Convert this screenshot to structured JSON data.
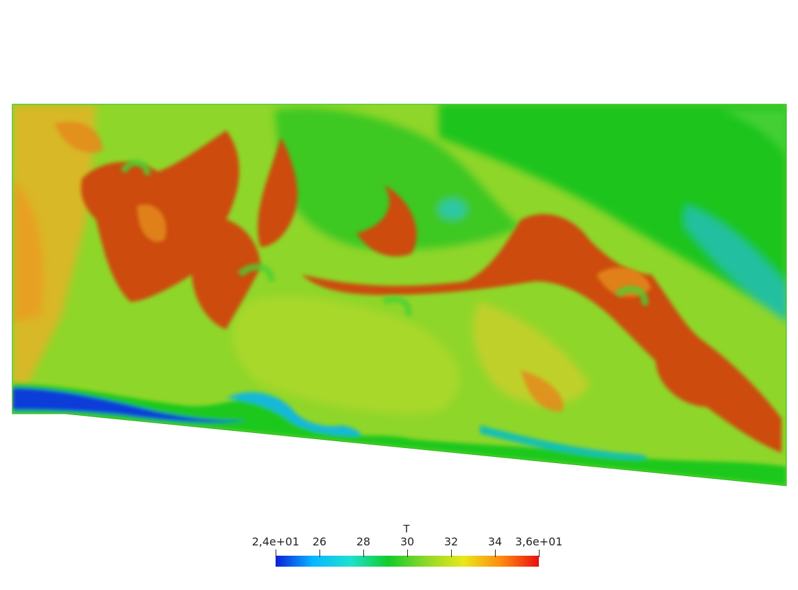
{
  "colormap": {
    "stops": [
      "#0a1fd8",
      "#08b8ff",
      "#1fe0d0",
      "#12cc2a",
      "#8ed82a",
      "#e8e81a",
      "#ff8a10",
      "#e81010"
    ],
    "domain_colors": {
      "background_green": "#19c41a",
      "yellow_green": "#b8d82a",
      "orange": "#e88a18",
      "dark_orange": "#cc4c08",
      "cyan": "#14c8b8",
      "blue": "#0e3cd8"
    }
  },
  "colorbar": {
    "title": "T",
    "min_label": "2,4e+01",
    "max_label": "3,6e+01",
    "ticks": [
      "2,4e+01",
      "26",
      "28",
      "30",
      "32",
      "34",
      "3,6e+01"
    ],
    "range": [
      24,
      36
    ]
  }
}
